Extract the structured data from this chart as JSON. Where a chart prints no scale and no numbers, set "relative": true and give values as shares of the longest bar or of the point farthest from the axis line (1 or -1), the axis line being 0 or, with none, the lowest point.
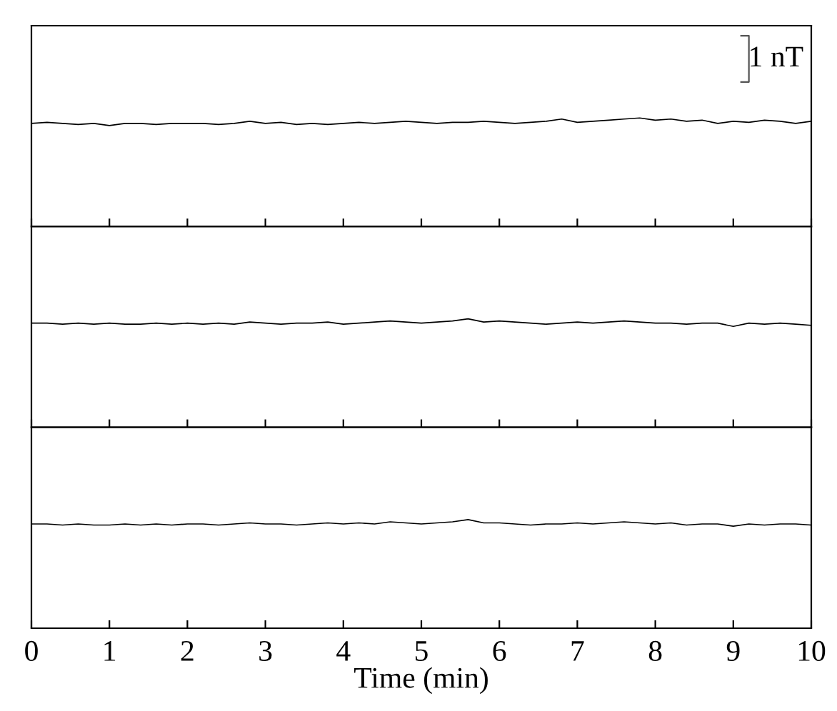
{
  "chart_data": [
    {
      "type": "line",
      "relative": true,
      "x": [
        0,
        0.2,
        0.4,
        0.6,
        0.8,
        1,
        1.2,
        1.4,
        1.6,
        1.8,
        2,
        2.2,
        2.4,
        2.6,
        2.8,
        3,
        3.2,
        3.4,
        3.6,
        3.8,
        4,
        4.2,
        4.4,
        4.6,
        4.8,
        5,
        5.2,
        5.4,
        5.6,
        5.8,
        6,
        6.2,
        6.4,
        6.6,
        6.8,
        7,
        7.2,
        7.4,
        7.6,
        7.8,
        8,
        8.2,
        8.4,
        8.6,
        8.8,
        9,
        9.2,
        9.4,
        9.6,
        9.8,
        10
      ],
      "xlim": [
        0,
        10
      ],
      "xticks": [
        0,
        1,
        2,
        3,
        4,
        5,
        6,
        7,
        8,
        9,
        10
      ],
      "tick_labels": false,
      "grid": false,
      "annotations": [
        "1 nT"
      ],
      "series": [
        {
          "color": "#000000",
          "values": [
            0.95,
            0.96,
            0.95,
            0.94,
            0.95,
            0.93,
            0.95,
            0.95,
            0.94,
            0.95,
            0.95,
            0.95,
            0.94,
            0.95,
            0.97,
            0.95,
            0.96,
            0.94,
            0.95,
            0.94,
            0.95,
            0.96,
            0.95,
            0.96,
            0.97,
            0.96,
            0.95,
            0.96,
            0.96,
            0.97,
            0.96,
            0.95,
            0.96,
            0.97,
            0.99,
            0.96,
            0.97,
            0.98,
            0.99,
            1.0,
            0.98,
            0.99,
            0.97,
            0.98,
            0.95,
            0.97,
            0.96,
            0.98,
            0.97,
            0.95,
            0.97
          ]
        }
      ]
    },
    {
      "type": "line",
      "relative": true,
      "x": [
        0,
        0.2,
        0.4,
        0.6,
        0.8,
        1,
        1.2,
        1.4,
        1.6,
        1.8,
        2,
        2.2,
        2.4,
        2.6,
        2.8,
        3,
        3.2,
        3.4,
        3.6,
        3.8,
        4,
        4.2,
        4.4,
        4.6,
        4.8,
        5,
        5.2,
        5.4,
        5.6,
        5.8,
        6,
        6.2,
        6.4,
        6.6,
        6.8,
        7,
        7.2,
        7.4,
        7.6,
        7.8,
        8,
        8.2,
        8.4,
        8.6,
        8.8,
        9,
        9.2,
        9.4,
        9.6,
        9.8,
        10
      ],
      "xlim": [
        0,
        10
      ],
      "xticks": [
        0,
        1,
        2,
        3,
        4,
        5,
        6,
        7,
        8,
        9,
        10
      ],
      "tick_labels": false,
      "grid": false,
      "series": [
        {
          "color": "#000000",
          "values": [
            0.96,
            0.96,
            0.95,
            0.96,
            0.95,
            0.96,
            0.95,
            0.95,
            0.96,
            0.95,
            0.96,
            0.95,
            0.96,
            0.95,
            0.97,
            0.96,
            0.95,
            0.96,
            0.96,
            0.97,
            0.95,
            0.96,
            0.97,
            0.98,
            0.97,
            0.96,
            0.97,
            0.98,
            1.0,
            0.97,
            0.98,
            0.97,
            0.96,
            0.95,
            0.96,
            0.97,
            0.96,
            0.97,
            0.98,
            0.97,
            0.96,
            0.96,
            0.95,
            0.96,
            0.96,
            0.93,
            0.96,
            0.95,
            0.96,
            0.95,
            0.94
          ]
        }
      ]
    },
    {
      "type": "line",
      "relative": true,
      "x": [
        0,
        0.2,
        0.4,
        0.6,
        0.8,
        1,
        1.2,
        1.4,
        1.6,
        1.8,
        2,
        2.2,
        2.4,
        2.6,
        2.8,
        3,
        3.2,
        3.4,
        3.6,
        3.8,
        4,
        4.2,
        4.4,
        4.6,
        4.8,
        5,
        5.2,
        5.4,
        5.6,
        5.8,
        6,
        6.2,
        6.4,
        6.6,
        6.8,
        7,
        7.2,
        7.4,
        7.6,
        7.8,
        8,
        8.2,
        8.4,
        8.6,
        8.8,
        9,
        9.2,
        9.4,
        9.6,
        9.8,
        10
      ],
      "xlim": [
        0,
        10
      ],
      "xticks": [
        0,
        1,
        2,
        3,
        4,
        5,
        6,
        7,
        8,
        9,
        10
      ],
      "tick_labels": "x",
      "grid": false,
      "xlabel": "Time (min)",
      "series": [
        {
          "color": "#000000",
          "values": [
            0.96,
            0.96,
            0.95,
            0.96,
            0.95,
            0.95,
            0.96,
            0.95,
            0.96,
            0.95,
            0.96,
            0.96,
            0.95,
            0.96,
            0.97,
            0.96,
            0.96,
            0.95,
            0.96,
            0.97,
            0.96,
            0.97,
            0.96,
            0.98,
            0.97,
            0.96,
            0.97,
            0.98,
            1.0,
            0.97,
            0.97,
            0.96,
            0.95,
            0.96,
            0.96,
            0.97,
            0.96,
            0.97,
            0.98,
            0.97,
            0.96,
            0.97,
            0.95,
            0.96,
            0.96,
            0.94,
            0.96,
            0.95,
            0.96,
            0.96,
            0.95
          ]
        }
      ]
    }
  ]
}
